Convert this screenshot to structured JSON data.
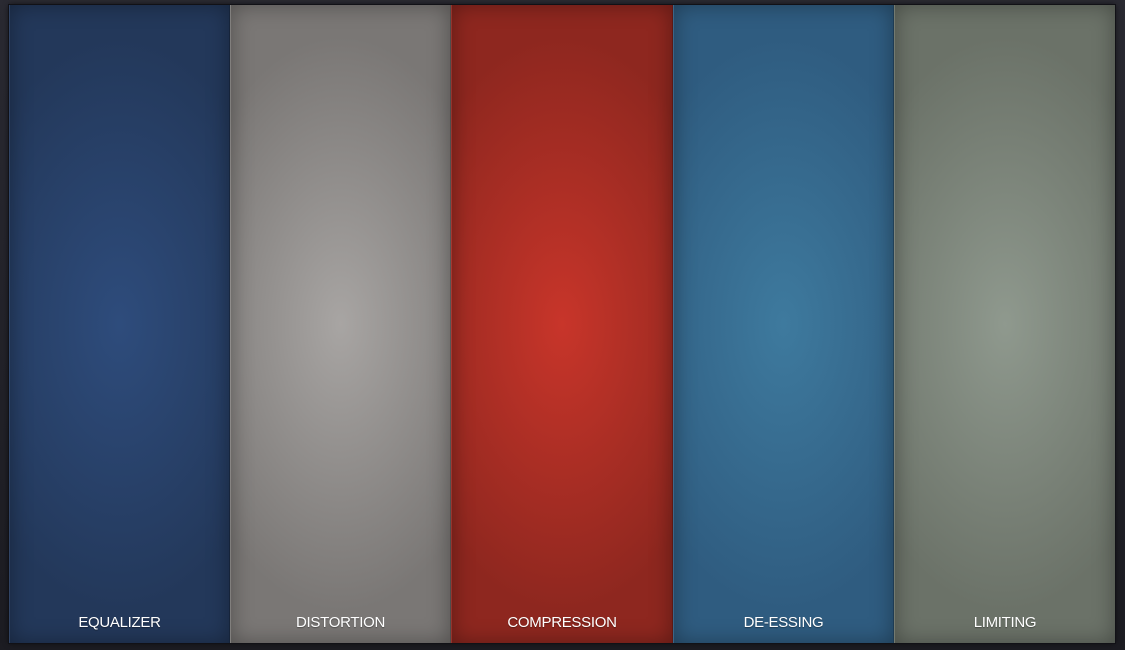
{
  "modules": [
    {
      "label": "EQUALIZER",
      "color_center": "#2e4c7c",
      "color_edge": "#23385a"
    },
    {
      "label": "DISTORTION",
      "color_center": "#a8a5a3",
      "color_edge": "#7a7775"
    },
    {
      "label": "COMPRESSION",
      "color_center": "#c8352a",
      "color_edge": "#8e271f"
    },
    {
      "label": "DE-ESSING",
      "color_center": "#3e7a9e",
      "color_edge": "#2f5c80"
    },
    {
      "label": "LIMITING",
      "color_center": "#8f998e",
      "color_edge": "#6b7268"
    }
  ]
}
